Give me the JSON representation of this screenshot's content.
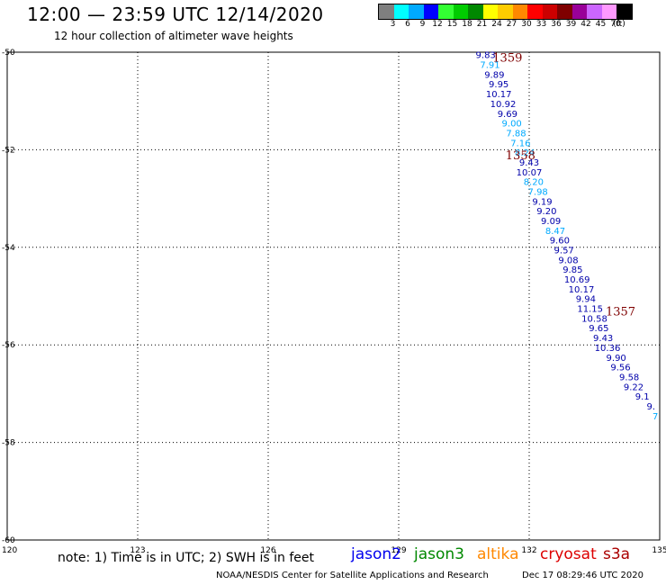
{
  "header": {
    "title": "12:00 — 23:59 UTC 12/14/2020",
    "subtitle": "12 hour collection of altimeter wave heights"
  },
  "legend": {
    "swatches": [
      "#7f7f7f",
      "#00ffff",
      "#00aaff",
      "#0000ff",
      "#33ff33",
      "#00cc00",
      "#008800",
      "#ffff00",
      "#ffcc00",
      "#ff8800",
      "#ff0000",
      "#cc0000",
      "#7f0000",
      "#990099",
      "#cc66ff",
      "#ff99ff",
      "#000000"
    ],
    "labels": [
      "3",
      "6",
      "9",
      "12",
      "15",
      "18",
      "21",
      "24",
      "27",
      "30",
      "33",
      "36",
      "39",
      "42",
      "45",
      "70",
      "(ft)"
    ]
  },
  "chart_data": {
    "type": "scatter",
    "x_ticks": [
      "120",
      "123",
      "126",
      "129",
      "132",
      "135"
    ],
    "y_ticks": [
      "-50",
      "-52",
      "-54",
      "-56",
      "-58",
      "-60"
    ],
    "xlim": [
      120,
      135
    ],
    "ylim": [
      -60,
      -50
    ],
    "grid": true,
    "grid_style": "dotted",
    "pass_labels": [
      {
        "text": "1359",
        "lon": 131.5,
        "lat": -50.1,
        "color": "#7f0000"
      },
      {
        "text": "1358",
        "lon": 131.8,
        "lat": -52.1,
        "color": "#7f0000"
      },
      {
        "text": "1357",
        "lon": 134.1,
        "lat": -55.3,
        "color": "#7f0000"
      }
    ],
    "points": [
      {
        "v": "9.83",
        "lon": 131.0,
        "lat": -50.05,
        "c": "#0000aa"
      },
      {
        "v": "7.91",
        "lon": 131.1,
        "lat": -50.25,
        "c": "#00aaff"
      },
      {
        "v": "9.89",
        "lon": 131.2,
        "lat": -50.45,
        "c": "#0000aa"
      },
      {
        "v": "9.95",
        "lon": 131.3,
        "lat": -50.65,
        "c": "#0000aa"
      },
      {
        "v": "10.17",
        "lon": 131.3,
        "lat": -50.85,
        "c": "#0000aa"
      },
      {
        "v": "10.92",
        "lon": 131.4,
        "lat": -51.05,
        "c": "#0000aa"
      },
      {
        "v": "9.69",
        "lon": 131.5,
        "lat": -51.25,
        "c": "#0000aa"
      },
      {
        "v": "9.00",
        "lon": 131.6,
        "lat": -51.45,
        "c": "#00aaff"
      },
      {
        "v": "7.88",
        "lon": 131.7,
        "lat": -51.65,
        "c": "#00aaff"
      },
      {
        "v": "7.16",
        "lon": 131.8,
        "lat": -51.85,
        "c": "#00aaff"
      },
      {
        "v": "8.24",
        "lon": 131.9,
        "lat": -52.05,
        "c": "#00aaff"
      },
      {
        "v": "9.43",
        "lon": 132.0,
        "lat": -52.25,
        "c": "#0000aa"
      },
      {
        "v": "10.07",
        "lon": 132.0,
        "lat": -52.45,
        "c": "#0000aa"
      },
      {
        "v": "8.20",
        "lon": 132.1,
        "lat": -52.65,
        "c": "#00aaff"
      },
      {
        "v": "7.98",
        "lon": 132.2,
        "lat": -52.85,
        "c": "#00aaff"
      },
      {
        "v": "9.19",
        "lon": 132.3,
        "lat": -53.05,
        "c": "#0000aa"
      },
      {
        "v": "9.20",
        "lon": 132.4,
        "lat": -53.25,
        "c": "#0000aa"
      },
      {
        "v": "9.09",
        "lon": 132.5,
        "lat": -53.45,
        "c": "#0000aa"
      },
      {
        "v": "8.47",
        "lon": 132.6,
        "lat": -53.65,
        "c": "#00aaff"
      },
      {
        "v": "9.60",
        "lon": 132.7,
        "lat": -53.85,
        "c": "#0000aa"
      },
      {
        "v": "9.57",
        "lon": 132.8,
        "lat": -54.05,
        "c": "#0000aa"
      },
      {
        "v": "9.08",
        "lon": 132.9,
        "lat": -54.25,
        "c": "#0000aa"
      },
      {
        "v": "9.85",
        "lon": 133.0,
        "lat": -54.45,
        "c": "#0000aa"
      },
      {
        "v": "10.69",
        "lon": 133.1,
        "lat": -54.65,
        "c": "#0000aa"
      },
      {
        "v": "10.17",
        "lon": 133.2,
        "lat": -54.85,
        "c": "#0000aa"
      },
      {
        "v": "9.94",
        "lon": 133.3,
        "lat": -55.05,
        "c": "#0000aa"
      },
      {
        "v": "11.15",
        "lon": 133.4,
        "lat": -55.25,
        "c": "#0000aa"
      },
      {
        "v": "10.58",
        "lon": 133.5,
        "lat": -55.45,
        "c": "#0000aa"
      },
      {
        "v": "9.65",
        "lon": 133.6,
        "lat": -55.65,
        "c": "#0000aa"
      },
      {
        "v": "9.43",
        "lon": 133.7,
        "lat": -55.85,
        "c": "#0000aa"
      },
      {
        "v": "10.36",
        "lon": 133.8,
        "lat": -56.05,
        "c": "#0000aa"
      },
      {
        "v": "9.90",
        "lon": 134.0,
        "lat": -56.25,
        "c": "#0000aa"
      },
      {
        "v": "9.56",
        "lon": 134.1,
        "lat": -56.45,
        "c": "#0000aa"
      },
      {
        "v": "9.58",
        "lon": 134.3,
        "lat": -56.65,
        "c": "#0000aa"
      },
      {
        "v": "9.22",
        "lon": 134.4,
        "lat": -56.85,
        "c": "#0000aa"
      },
      {
        "v": "9.1",
        "lon": 134.6,
        "lat": -57.05,
        "c": "#0000aa"
      },
      {
        "v": "9.",
        "lon": 134.8,
        "lat": -57.25,
        "c": "#0000aa"
      },
      {
        "v": "7",
        "lon": 134.9,
        "lat": -57.45,
        "c": "#00aaff"
      }
    ]
  },
  "footer": {
    "note": "note: 1) Time is in UTC; 2) SWH is in feet",
    "satellites": [
      {
        "name": "jason2",
        "color": "#0000ee"
      },
      {
        "name": "jason3",
        "color": "#008800"
      },
      {
        "name": "altika",
        "color": "#ff8800"
      },
      {
        "name": "cryosat",
        "color": "#dd0000"
      },
      {
        "name": "s3a",
        "color": "#aa0000"
      }
    ],
    "credit": "NOAA/NESDIS Center for Satellite Applications and Research",
    "timestamp": "Dec 17 08:29:46 UTC 2020"
  }
}
